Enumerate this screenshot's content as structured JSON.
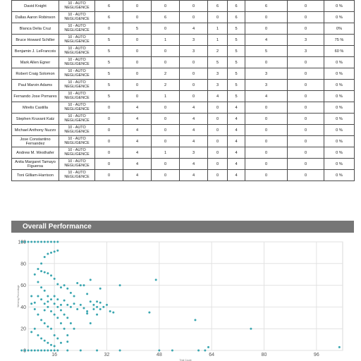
{
  "table": {
    "rows": [
      {
        "name": "David Knight",
        "category": "10 - AUTO NEGLIGENCE",
        "c1": "6",
        "c2": "0",
        "c3": "0",
        "c4": "0",
        "c5": "6",
        "c6": "6",
        "c7": "6",
        "c8": "0",
        "c9": "0 %"
      },
      {
        "name": "Dallas Aaron Robinson",
        "category": "10 - AUTO NEGLIGENCE",
        "c1": "6",
        "c2": "0",
        "c3": "6",
        "c4": "0",
        "c5": "0",
        "c6": "6",
        "c7": "0",
        "c8": "0",
        "c9": "0 %"
      },
      {
        "name": "Blanca Delia Cruz",
        "category": "10 - AUTO NEGLIGENCE",
        "c1": "0",
        "c2": "5",
        "c3": "0",
        "c4": "4",
        "c5": "1",
        "c6": "5",
        "c7": "0",
        "c8": "0",
        "c9": "0%"
      },
      {
        "name": "Bruce Howard Schiller",
        "category": "10 - AUTO NEGLIGENCE",
        "c1": "5",
        "c2": "0",
        "c3": "1",
        "c4": "3",
        "c5": "1",
        "c6": "5",
        "c7": "4",
        "c8": "3",
        "c9": "75 %"
      },
      {
        "name": "Benjamin J. LeFrancois",
        "category": "10 - AUTO NEGLIGENCE",
        "c1": "5",
        "c2": "0",
        "c3": "0",
        "c4": "3",
        "c5": "2",
        "c6": "5",
        "c7": "5",
        "c8": "3",
        "c9": "60 %"
      },
      {
        "name": "Mark Allen Egner",
        "category": "10 - AUTO NEGLIGENCE",
        "c1": "5",
        "c2": "0",
        "c3": "0",
        "c4": "0",
        "c5": "5",
        "c6": "5",
        "c7": "0",
        "c8": "0",
        "c9": "0 %"
      },
      {
        "name": "Robert Craig Solomon",
        "category": "10 - AUTO NEGLIGENCE",
        "c1": "5",
        "c2": "0",
        "c3": "2",
        "c4": "0",
        "c5": "3",
        "c6": "5",
        "c7": "3",
        "c8": "0",
        "c9": "0 %"
      },
      {
        "name": "Paul Marvin Adams",
        "category": "10 - AUTO NEGLIGENCE",
        "c1": "5",
        "c2": "0",
        "c3": "2",
        "c4": "0",
        "c5": "3",
        "c6": "5",
        "c7": "3",
        "c8": "0",
        "c9": "0 %"
      },
      {
        "name": "Fernando Jose Pomares",
        "category": "10 - AUTO NEGLIGENCE",
        "c1": "5",
        "c2": "0",
        "c3": "1",
        "c4": "0",
        "c5": "4",
        "c6": "5",
        "c7": "4",
        "c8": "0",
        "c9": "0 %"
      },
      {
        "name": "Mirelis Castilla",
        "category": "10 - AUTO NEGLIGENCE",
        "c1": "0",
        "c2": "4",
        "c3": "0",
        "c4": "4",
        "c5": "0",
        "c6": "4",
        "c7": "0",
        "c8": "0",
        "c9": "0 %"
      },
      {
        "name": "Stephen Kruvant Katz",
        "category": "10 - AUTO NEGLIGENCE",
        "c1": "0",
        "c2": "4",
        "c3": "0",
        "c4": "4",
        "c5": "0",
        "c6": "4",
        "c7": "0",
        "c8": "0",
        "c9": "0 %"
      },
      {
        "name": "Michael Anthony Nuzzo",
        "category": "10 - AUTO NEGLIGENCE",
        "c1": "0",
        "c2": "4",
        "c3": "0",
        "c4": "4",
        "c5": "0",
        "c6": "4",
        "c7": "0",
        "c8": "0",
        "c9": "0 %"
      },
      {
        "name": "Jose Constantino Fernandez",
        "category": "10 - AUTO NEGLIGENCE",
        "c1": "0",
        "c2": "4",
        "c3": "0",
        "c4": "4",
        "c5": "0",
        "c6": "4",
        "c7": "0",
        "c8": "0",
        "c9": "0 %"
      },
      {
        "name": "Andrew M. Westhafer",
        "category": "10 - AUTO NEGLIGENCE",
        "c1": "0",
        "c2": "4",
        "c3": "1",
        "c4": "3",
        "c5": "0",
        "c6": "4",
        "c7": "0",
        "c8": "0",
        "c9": "0 %"
      },
      {
        "name": "Anita Margaret Tamayo Figueroa",
        "category": "10 - AUTO NEGLIGENCE",
        "c1": "0",
        "c2": "4",
        "c3": "0",
        "c4": "4",
        "c5": "0",
        "c6": "4",
        "c7": "0",
        "c8": "0",
        "c9": "0 %"
      },
      {
        "name": "Toni Gilliam-Harrison",
        "category": "10 - AUTO NEGLIGENCE",
        "c1": "0",
        "c2": "4",
        "c3": "0",
        "c4": "4",
        "c5": "0",
        "c6": "4",
        "c7": "0",
        "c8": "0",
        "c9": "0 %"
      }
    ]
  },
  "panel": {
    "title": "Overall Performance"
  },
  "chart_data": {
    "type": "scatter",
    "xlabel": "Trial Count",
    "ylabel": "Winning Percentage",
    "x_ticks": [
      16,
      32,
      48,
      64,
      80,
      96
    ],
    "y_ticks": [
      0,
      20,
      40,
      60,
      80,
      100
    ],
    "xlim": [
      8,
      104
    ],
    "ylim": [
      0,
      100
    ],
    "grid": true,
    "point_color": "#3aa6b0",
    "points": [
      [
        6,
        100
      ],
      [
        7,
        100
      ],
      [
        8,
        100
      ],
      [
        9,
        100
      ],
      [
        10,
        100
      ],
      [
        11,
        100
      ],
      [
        12,
        100
      ],
      [
        13,
        100
      ],
      [
        14,
        100
      ],
      [
        15,
        100
      ],
      [
        16,
        100
      ],
      [
        17,
        100
      ],
      [
        6,
        0
      ],
      [
        7,
        0
      ],
      [
        8,
        0
      ],
      [
        9,
        0
      ],
      [
        10,
        0
      ],
      [
        11,
        0
      ],
      [
        12,
        0
      ],
      [
        13,
        0
      ],
      [
        14,
        0
      ],
      [
        15,
        0
      ],
      [
        16,
        0
      ],
      [
        17,
        0
      ],
      [
        20,
        0
      ],
      [
        24,
        0
      ],
      [
        29,
        0
      ],
      [
        36,
        0
      ],
      [
        48,
        0
      ],
      [
        60,
        0
      ],
      [
        62,
        0
      ],
      [
        12,
        80
      ],
      [
        13,
        86
      ],
      [
        14,
        89
      ],
      [
        15,
        90
      ],
      [
        16,
        91
      ],
      [
        17,
        92
      ],
      [
        10,
        70
      ],
      [
        11,
        75
      ],
      [
        12,
        73
      ],
      [
        13,
        72
      ],
      [
        14,
        71
      ],
      [
        15,
        69
      ],
      [
        16,
        66
      ],
      [
        17,
        61
      ],
      [
        18,
        58
      ],
      [
        19,
        60
      ],
      [
        20,
        57
      ],
      [
        21,
        53
      ],
      [
        22,
        50
      ],
      [
        11,
        63
      ],
      [
        12,
        58
      ],
      [
        13,
        55
      ],
      [
        14,
        50
      ],
      [
        15,
        47
      ],
      [
        16,
        43
      ],
      [
        17,
        40
      ],
      [
        18,
        37
      ],
      [
        19,
        33
      ],
      [
        20,
        30
      ],
      [
        21,
        25
      ],
      [
        22,
        20
      ],
      [
        13,
        37
      ],
      [
        14,
        40
      ],
      [
        15,
        36
      ],
      [
        16,
        33
      ],
      [
        17,
        30
      ],
      [
        18,
        25
      ],
      [
        19,
        20
      ],
      [
        20,
        14
      ],
      [
        9,
        43
      ],
      [
        10,
        38
      ],
      [
        11,
        33
      ],
      [
        12,
        28
      ],
      [
        13,
        25
      ],
      [
        14,
        22
      ],
      [
        15,
        20
      ],
      [
        16,
        14
      ],
      [
        17,
        11
      ],
      [
        18,
        7
      ],
      [
        20,
        8
      ],
      [
        9,
        17
      ],
      [
        10,
        20
      ],
      [
        11,
        14
      ],
      [
        12,
        11
      ],
      [
        13,
        9
      ],
      [
        14,
        7
      ],
      [
        15,
        5
      ],
      [
        16,
        4
      ],
      [
        9,
        50
      ],
      [
        10,
        44
      ],
      [
        11,
        50
      ],
      [
        12,
        47
      ],
      [
        13,
        43
      ],
      [
        14,
        45
      ],
      [
        16,
        50
      ],
      [
        17,
        47
      ],
      [
        18,
        42
      ],
      [
        19,
        46
      ],
      [
        20,
        42
      ],
      [
        21,
        40
      ],
      [
        22,
        43
      ],
      [
        23,
        38
      ],
      [
        24,
        42
      ],
      [
        25,
        39
      ],
      [
        26,
        34
      ],
      [
        26,
        52
      ],
      [
        27,
        45
      ],
      [
        28,
        42
      ],
      [
        29,
        40
      ],
      [
        29,
        33
      ],
      [
        30,
        38
      ],
      [
        23,
        62
      ],
      [
        24,
        60
      ],
      [
        25,
        60
      ],
      [
        26,
        36
      ],
      [
        27,
        25
      ],
      [
        27,
        65
      ],
      [
        28,
        38
      ],
      [
        29,
        45
      ],
      [
        30,
        44
      ],
      [
        30,
        57
      ],
      [
        31,
        40
      ],
      [
        32,
        42
      ],
      [
        33,
        36
      ],
      [
        34,
        35
      ],
      [
        36,
        60
      ],
      [
        47,
        65
      ],
      [
        45,
        35
      ],
      [
        52,
        0
      ],
      [
        59,
        28
      ],
      [
        63,
        3
      ],
      [
        76,
        20
      ],
      [
        103,
        3
      ]
    ]
  }
}
